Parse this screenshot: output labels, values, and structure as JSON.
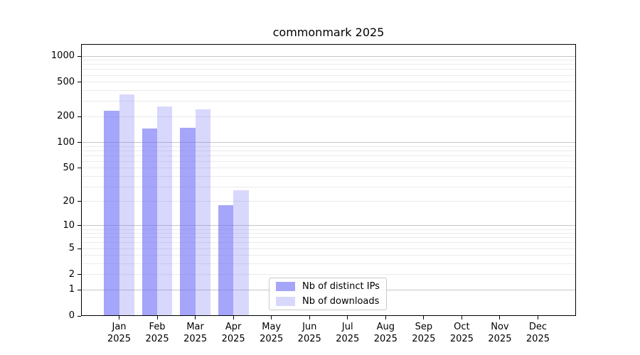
{
  "chart_data": {
    "type": "bar",
    "title": "commonmark 2025",
    "categories": [
      "Jan",
      "Feb",
      "Mar",
      "Apr",
      "May",
      "Jun",
      "Jul",
      "Aug",
      "Sep",
      "Oct",
      "Nov",
      "Dec"
    ],
    "category_year": "2025",
    "series": [
      {
        "name": "Nb of distinct IPs",
        "color": "rgba(110,110,245,0.62)",
        "values": [
          234,
          146,
          147,
          18,
          0,
          0,
          0,
          0,
          0,
          0,
          0,
          0
        ]
      },
      {
        "name": "Nb of downloads",
        "color": "rgba(110,110,245,0.27)",
        "values": [
          358,
          262,
          240,
          27,
          0,
          0,
          0,
          0,
          0,
          0,
          0,
          0
        ]
      }
    ],
    "yscale": "log1p",
    "ylim": [
      0,
      1300
    ],
    "yticks": [
      0,
      1,
      2,
      5,
      10,
      20,
      50,
      100,
      200,
      500,
      1000
    ],
    "grid": {
      "major_values": [
        1,
        10,
        100,
        1000
      ],
      "minor_subs": [
        2,
        3,
        4,
        5,
        6,
        7,
        8,
        9
      ],
      "minor_decades": [
        1,
        10,
        100
      ],
      "major_color": "#c6c6c6",
      "minor_color": "#ebebeb"
    },
    "legend": {
      "position": "lower-center"
    },
    "xlabel": "",
    "ylabel": ""
  },
  "colors": {
    "background": "#ffffff",
    "axis": "#000000",
    "text": "#000000",
    "legend_border": "#c9c9c9"
  }
}
